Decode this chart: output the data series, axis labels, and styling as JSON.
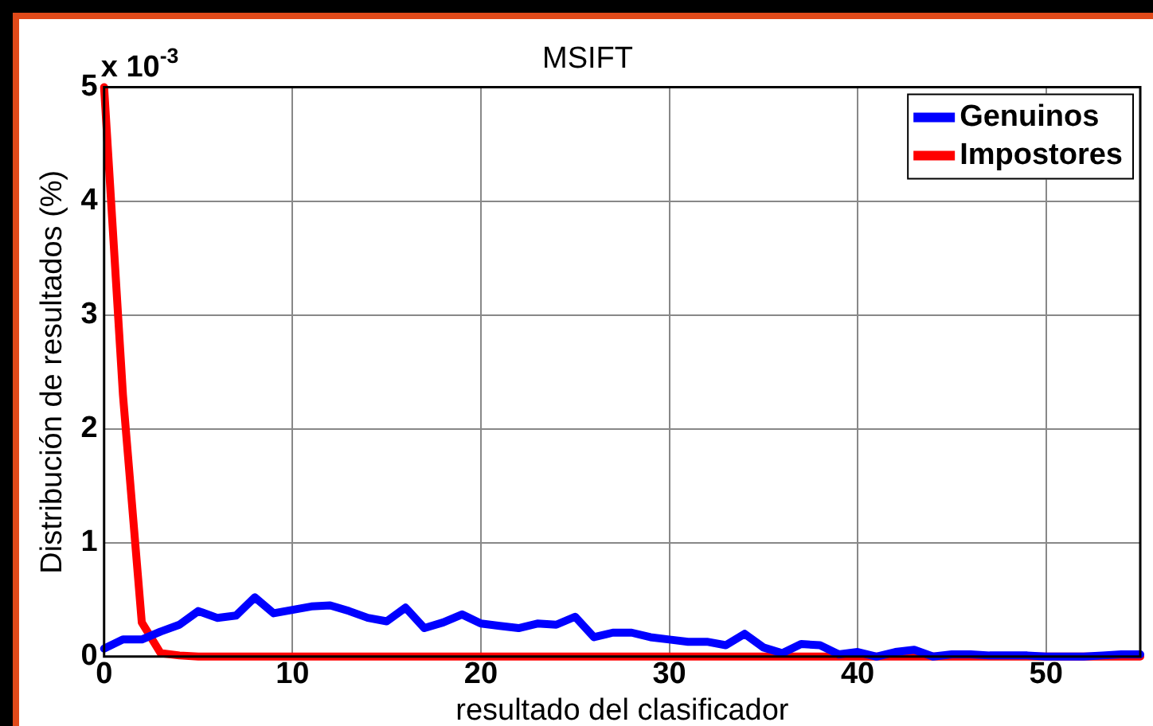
{
  "chart_data": {
    "type": "line",
    "title": "MSIFT",
    "xlabel": "resultado del clasificador",
    "ylabel": "Distribución de resultados (%)",
    "annotations": [
      "x 10$^{-3}$"
    ],
    "series": [
      {
        "name": "Genuinos",
        "color": "#0000ff",
        "x": [
          0,
          1,
          2,
          3,
          4,
          5,
          6,
          7,
          8,
          9,
          10,
          11,
          12,
          13,
          14,
          15,
          16,
          17,
          18,
          19,
          20,
          21,
          22,
          23,
          24,
          25,
          26,
          27,
          28,
          29,
          30,
          31,
          32,
          33,
          34,
          35,
          36,
          37,
          38,
          39,
          40,
          41,
          42,
          43,
          44,
          45,
          46,
          47,
          48,
          49,
          50,
          51,
          52,
          53,
          54,
          55
        ],
        "values": [
          0.07,
          0.15,
          0.15,
          0.22,
          0.28,
          0.4,
          0.34,
          0.36,
          0.52,
          0.38,
          0.41,
          0.44,
          0.45,
          0.4,
          0.34,
          0.31,
          0.43,
          0.25,
          0.3,
          0.37,
          0.29,
          0.27,
          0.25,
          0.29,
          0.28,
          0.35,
          0.17,
          0.21,
          0.21,
          0.17,
          0.15,
          0.13,
          0.13,
          0.1,
          0.2,
          0.08,
          0.03,
          0.11,
          0.1,
          0.02,
          0.04,
          0.0,
          0.04,
          0.06,
          0.0,
          0.02,
          0.02,
          0.01,
          0.01,
          0.01,
          0.0,
          0.0,
          0.0,
          0.01,
          0.02,
          0.02
        ]
      },
      {
        "name": "Impostores",
        "color": "#ff0000",
        "x": [
          0,
          1,
          2,
          3,
          4,
          5,
          10,
          20,
          30,
          40,
          50,
          55
        ],
        "values": [
          5.0,
          2.3,
          0.3,
          0.03,
          0.01,
          0.0,
          0.0,
          0.0,
          0.0,
          0.0,
          0.0,
          0.0
        ]
      }
    ],
    "xlim": [
      0,
      55
    ],
    "xticks": [
      0,
      10,
      20,
      30,
      40,
      50
    ],
    "ylim": [
      0,
      5
    ],
    "yticks": [
      0,
      1,
      2,
      3,
      4,
      5
    ],
    "grid": true,
    "legend": "top right",
    "marker": "none",
    "line_style": "solid"
  }
}
